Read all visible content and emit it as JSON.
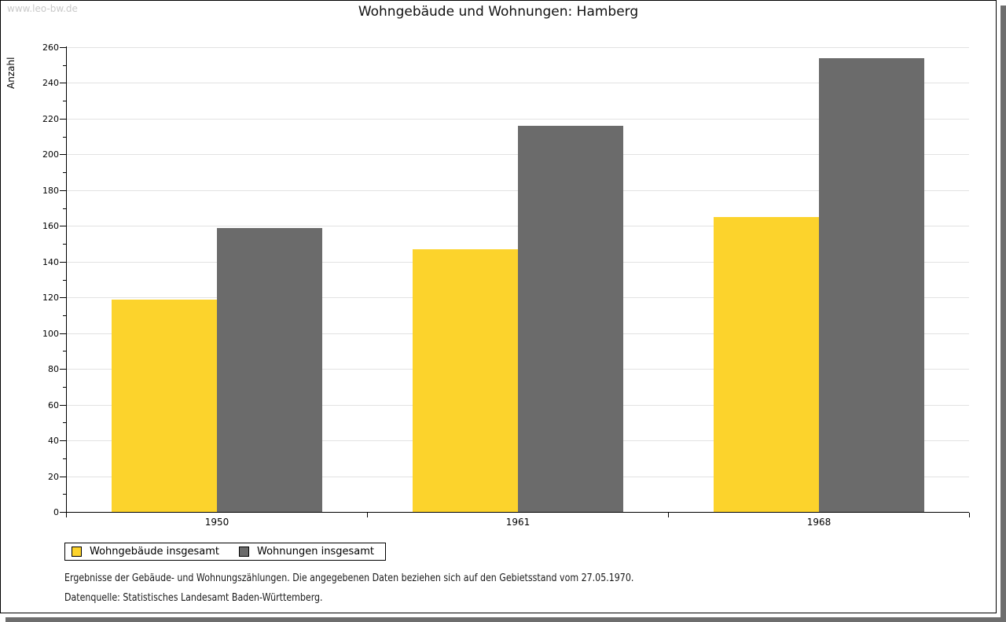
{
  "watermark": "www.leo-bw.de",
  "title": "Wohngebäude und Wohnungen: Hamberg",
  "chart_data": {
    "type": "bar",
    "categories": [
      "1950",
      "1961",
      "1968"
    ],
    "series": [
      {
        "name": "Wohngebäude insgesamt",
        "color": "#fcd32c",
        "values": [
          119,
          147,
          165
        ]
      },
      {
        "name": "Wohnungen insgesamt",
        "color": "#6b6b6b",
        "values": [
          159,
          216,
          254
        ]
      }
    ],
    "title": "Wohngebäude und Wohnungen: Hamberg",
    "xlabel": "",
    "ylabel": "Anzahl",
    "ylim": [
      0,
      260
    ],
    "ytick_step": 20,
    "minor_tick_step": 10,
    "grid": true,
    "legend_position": "bottom-left"
  },
  "footer": {
    "line1": "Ergebnisse der Gebäude- und Wohnungszählungen. Die angegebenen Daten beziehen sich auf den Gebietsstand vom 27.05.1970.",
    "line2": "Datenquelle: Statistisches Landesamt Baden-Württemberg."
  }
}
